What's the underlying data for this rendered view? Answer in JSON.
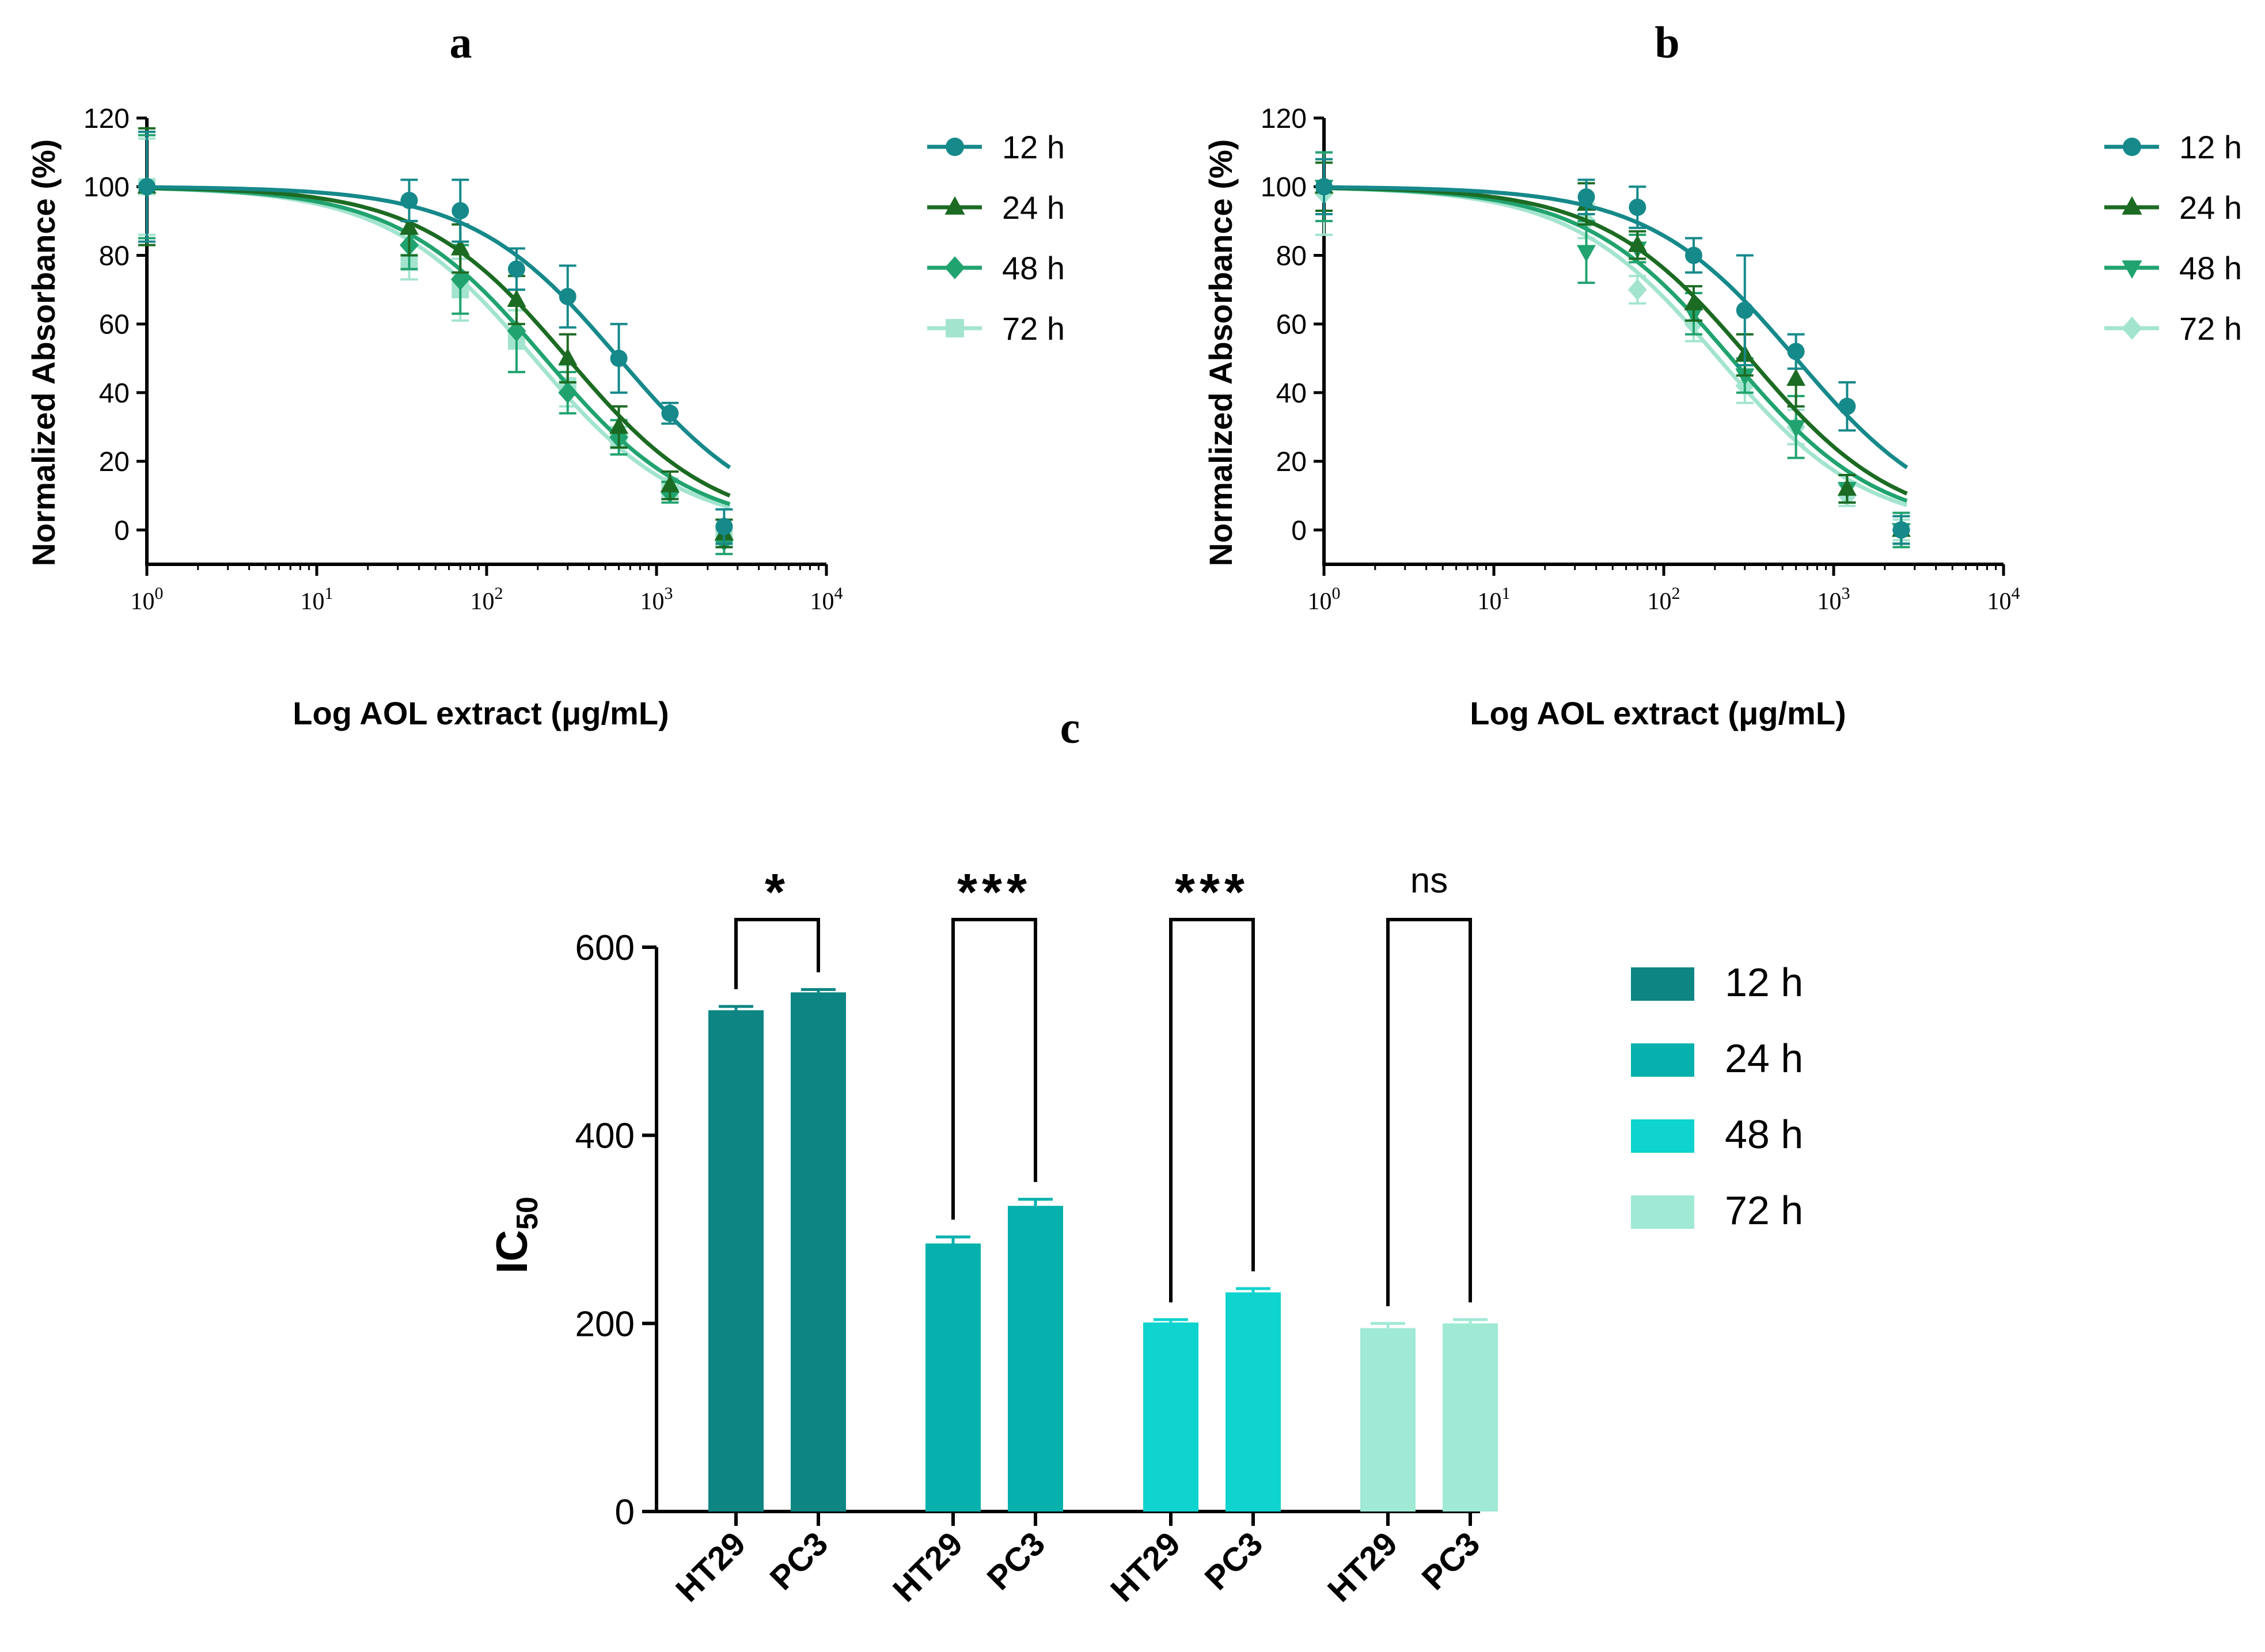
{
  "chart_data": [
    {
      "panel": "a",
      "type": "line",
      "title": "a",
      "xlabel": "Log AOL extract (μg/mL)",
      "ylabel": "Normalized Absorbance (%)",
      "xscale": "log",
      "xlim": [
        1,
        10000
      ],
      "ylim": [
        -10,
        120
      ],
      "xticks": [
        {
          "base": "10",
          "exp": "0"
        },
        {
          "base": "10",
          "exp": "1"
        },
        {
          "base": "10",
          "exp": "2"
        },
        {
          "base": "10",
          "exp": "3"
        },
        {
          "base": "10",
          "exp": "4"
        }
      ],
      "yticks": [
        "0",
        "20",
        "40",
        "60",
        "80",
        "100",
        "120"
      ],
      "legend_position": "right",
      "series": [
        {
          "name": "12 h",
          "marker": "circle",
          "color": "#16898a",
          "ic50": 600,
          "hill": 1.0,
          "x": [
            1,
            35,
            70,
            150,
            300,
            600,
            1200,
            2500
          ],
          "y": [
            100,
            96,
            93,
            76,
            68,
            50,
            34,
            1
          ],
          "err": [
            16,
            6,
            9,
            6,
            9,
            10,
            3,
            5
          ]
        },
        {
          "name": "24 h",
          "marker": "triangle-up",
          "color": "#1c6b23",
          "ic50": 300,
          "hill": 1.0,
          "x": [
            1,
            35,
            70,
            150,
            300,
            600,
            1200,
            2500
          ],
          "y": [
            100,
            88,
            82,
            67,
            50,
            30,
            13,
            -1
          ],
          "err": [
            17,
            8,
            7,
            7,
            7,
            6,
            4,
            4
          ]
        },
        {
          "name": "48 h",
          "marker": "diamond",
          "color": "#21a36f",
          "ic50": 220,
          "hill": 1.0,
          "x": [
            1,
            35,
            70,
            150,
            300,
            600,
            1200,
            2500
          ],
          "y": [
            100,
            83,
            73,
            58,
            40,
            27,
            11,
            -3
          ],
          "err": [
            15,
            7,
            10,
            12,
            6,
            5,
            3,
            4
          ]
        },
        {
          "name": "72 h",
          "marker": "square",
          "color": "#a3e4cf",
          "ic50": 190,
          "hill": 1.0,
          "x": [
            1,
            35,
            70,
            150,
            300,
            600,
            1200,
            2500
          ],
          "y": [
            100,
            78,
            70,
            55,
            42,
            26,
            12,
            -2
          ],
          "err": [
            14,
            5,
            9,
            9,
            6,
            4,
            3,
            3
          ]
        }
      ]
    },
    {
      "panel": "b",
      "type": "line",
      "title": "b",
      "xlabel": "Log AOL extract (μg/mL)",
      "ylabel": "Normalized Absorbance (%)",
      "xscale": "log",
      "xlim": [
        1,
        10000
      ],
      "ylim": [
        -10,
        120
      ],
      "xticks": [
        {
          "base": "10",
          "exp": "0"
        },
        {
          "base": "10",
          "exp": "1"
        },
        {
          "base": "10",
          "exp": "2"
        },
        {
          "base": "10",
          "exp": "3"
        },
        {
          "base": "10",
          "exp": "4"
        }
      ],
      "yticks": [
        "0",
        "20",
        "40",
        "60",
        "80",
        "100",
        "120"
      ],
      "legend_position": "right",
      "series": [
        {
          "name": "12 h",
          "marker": "circle",
          "color": "#16898a",
          "ic50": 600,
          "hill": 1.0,
          "x": [
            1,
            35,
            70,
            150,
            300,
            600,
            1200,
            2500
          ],
          "y": [
            100,
            97,
            94,
            80,
            64,
            52,
            36,
            0
          ],
          "err": [
            8,
            5,
            6,
            5,
            16,
            5,
            7,
            4
          ]
        },
        {
          "name": "24 h",
          "marker": "triangle-up",
          "color": "#1c6b23",
          "ic50": 320,
          "hill": 1.0,
          "x": [
            1,
            35,
            70,
            150,
            300,
            600,
            1200,
            2500
          ],
          "y": [
            100,
            95,
            83,
            66,
            51,
            44,
            12,
            0
          ],
          "err": [
            7,
            6,
            4,
            5,
            6,
            8,
            4,
            4
          ]
        },
        {
          "name": "48 h",
          "marker": "triangle-down",
          "color": "#21a36f",
          "ic50": 250,
          "hill": 1.0,
          "x": [
            1,
            35,
            70,
            150,
            300,
            600,
            1200,
            2500
          ],
          "y": [
            100,
            81,
            82,
            63,
            45,
            30,
            12,
            0
          ],
          "err": [
            10,
            9,
            4,
            6,
            5,
            9,
            4,
            5
          ]
        },
        {
          "name": "72 h",
          "marker": "diamond",
          "color": "#a3e4cf",
          "ic50": 210,
          "hill": 1.0,
          "x": [
            1,
            35,
            70,
            150,
            300,
            600,
            1200,
            2500
          ],
          "y": [
            98,
            90,
            70,
            60,
            42,
            30,
            10,
            0
          ],
          "err": [
            12,
            5,
            4,
            5,
            5,
            5,
            3,
            3
          ]
        }
      ]
    },
    {
      "panel": "c",
      "type": "bar",
      "title": "c",
      "ylabel_main": "IC",
      "ylabel_sub": "50",
      "ylim": [
        0,
        600
      ],
      "yticks": [
        "0",
        "200",
        "400",
        "600"
      ],
      "legend_position": "right",
      "groups": [
        {
          "time": "12 h",
          "color": "#0d8683",
          "bars": [
            {
              "label": "HT29",
              "value": 533,
              "err": 4
            },
            {
              "label": "PC3",
              "value": 552,
              "err": 3
            }
          ],
          "significance": "*"
        },
        {
          "time": "24 h",
          "color": "#06b1ad",
          "bars": [
            {
              "label": "HT29",
              "value": 285,
              "err": 7
            },
            {
              "label": "PC3",
              "value": 325,
              "err": 7
            }
          ],
          "significance": "***"
        },
        {
          "time": "48 h",
          "color": "#0ed3cf",
          "bars": [
            {
              "label": "HT29",
              "value": 201,
              "err": 3
            },
            {
              "label": "PC3",
              "value": 233,
              "err": 4
            }
          ],
          "significance": "***"
        },
        {
          "time": "72 h",
          "color": "#a0e9d5",
          "bars": [
            {
              "label": "HT29",
              "value": 195,
              "err": 5
            },
            {
              "label": "PC3",
              "value": 200,
              "err": 4
            }
          ],
          "significance": "ns"
        }
      ],
      "legend": [
        {
          "name": "12 h",
          "color": "#0d8683"
        },
        {
          "name": "24 h",
          "color": "#06b1ad"
        },
        {
          "name": "48 h",
          "color": "#0ed3cf"
        },
        {
          "name": "72 h",
          "color": "#a0e9d5"
        }
      ]
    }
  ]
}
